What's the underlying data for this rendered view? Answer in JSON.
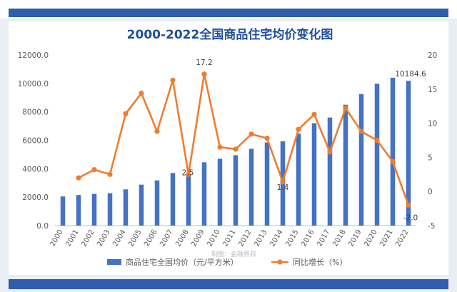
{
  "chart_data": {
    "type": "bar+line",
    "title": "2000-2022全国商品住宅均价变化图",
    "categories": [
      "2000",
      "2001",
      "2002",
      "2003",
      "2004",
      "2005",
      "2006",
      "2007",
      "2008",
      "2009",
      "2010",
      "2011",
      "2012",
      "2013",
      "2014",
      "2015",
      "2016",
      "2017",
      "2018",
      "2019",
      "2020",
      "2021",
      "2022"
    ],
    "series": [
      {
        "name": "商品住宅全国均价（元/平方米）",
        "type": "bar",
        "axis": "left",
        "color": "#4472c4",
        "values": [
          2050,
          2150,
          2230,
          2280,
          2550,
          2880,
          3180,
          3700,
          3600,
          4450,
          4700,
          4950,
          5400,
          5850,
          5930,
          6470,
          7200,
          7600,
          8500,
          9250,
          9980,
          10400,
          10184.6
        ]
      },
      {
        "name": "同比增长（%）",
        "type": "line",
        "axis": "right",
        "color": "#ed7d31",
        "values": [
          null,
          2.0,
          3.2,
          2.5,
          11.4,
          14.4,
          8.8,
          16.3,
          2.5,
          17.2,
          6.5,
          6.2,
          8.4,
          7.8,
          1.4,
          9.1,
          11.3,
          5.8,
          12.2,
          8.8,
          7.5,
          4.4,
          -2.0
        ]
      }
    ],
    "left_axis": {
      "range": [
        0,
        12000
      ],
      "ticks": [
        "0.0",
        "2000.0",
        "4000.0",
        "6000.0",
        "8000.0",
        "10000.0",
        "12000.0"
      ]
    },
    "right_axis": {
      "range": [
        -5,
        20
      ],
      "ticks": [
        "-5",
        "0",
        "5",
        "10",
        "15",
        "20"
      ]
    },
    "data_labels": [
      {
        "series": 1,
        "index": 9,
        "text": "17.2"
      },
      {
        "series": 1,
        "index": 8,
        "text": "2.5"
      },
      {
        "series": 1,
        "index": 14,
        "text": "1.4"
      },
      {
        "series": 1,
        "index": 22,
        "text": "-2.0"
      },
      {
        "series": 0,
        "index": 22,
        "text": "10184.6"
      }
    ],
    "watermark": "制图：金融界叔",
    "legend_position": "bottom",
    "grid": false
  },
  "colors": {
    "title": "#1f4e9c",
    "stripe": "#2f5eaa",
    "axis_text": "#595959"
  }
}
